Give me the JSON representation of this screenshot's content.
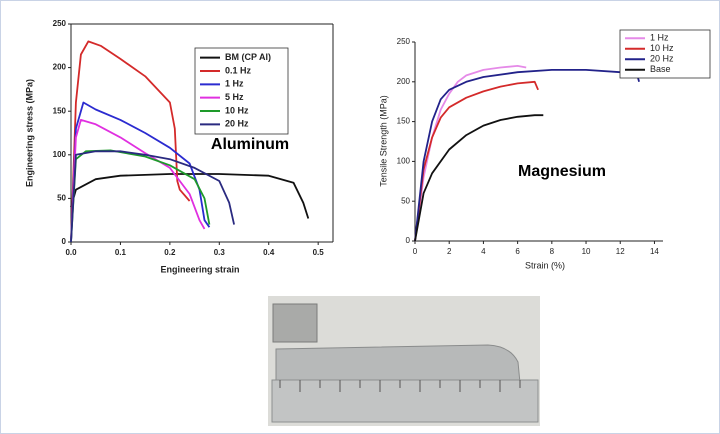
{
  "chart_data": [
    {
      "type": "line",
      "annotation": "Aluminum",
      "x_label": "Engineering strain",
      "y_label": "Engineering stress (MPa)",
      "xlim": [
        0,
        0.53
      ],
      "ylim": [
        0,
        250
      ],
      "xticks": [
        {
          "value": 0,
          "label": "0.0"
        },
        0.1,
        0.2,
        0.3,
        0.4,
        0.5
      ],
      "yticks": [
        0,
        50,
        100,
        150,
        200,
        250
      ],
      "legend": "upper right",
      "series": [
        {
          "name": "BM (CP Al)",
          "color": "#111111",
          "x": [
            0,
            0.01,
            0.05,
            0.1,
            0.2,
            0.3,
            0.4,
            0.45,
            0.47,
            0.48
          ],
          "values": [
            40,
            60,
            72,
            76,
            78,
            78,
            76,
            68,
            45,
            27
          ]
        },
        {
          "name": "0.1 Hz",
          "color": "#d42a2a",
          "x": [
            0,
            0.01,
            0.02,
            0.035,
            0.06,
            0.1,
            0.15,
            0.2,
            0.21,
            0.215,
            0.22,
            0.24
          ],
          "values": [
            0,
            160,
            215,
            230,
            225,
            210,
            190,
            160,
            130,
            70,
            60,
            47
          ]
        },
        {
          "name": "1 Hz",
          "color": "#2b2bd0",
          "x": [
            0,
            0.01,
            0.025,
            0.05,
            0.1,
            0.15,
            0.2,
            0.24,
            0.26,
            0.27,
            0.28
          ],
          "values": [
            0,
            130,
            160,
            152,
            140,
            125,
            108,
            90,
            60,
            25,
            17
          ]
        },
        {
          "name": "5 Hz",
          "color": "#e030e0",
          "x": [
            0,
            0.01,
            0.02,
            0.05,
            0.1,
            0.15,
            0.2,
            0.24,
            0.26,
            0.27
          ],
          "values": [
            0,
            120,
            140,
            135,
            120,
            102,
            85,
            55,
            25,
            15
          ]
        },
        {
          "name": "10 Hz",
          "color": "#1e9a2a",
          "x": [
            0,
            0.01,
            0.03,
            0.08,
            0.15,
            0.2,
            0.25,
            0.27,
            0.28
          ],
          "values": [
            0,
            95,
            104,
            105,
            98,
            88,
            72,
            50,
            20
          ]
        },
        {
          "name": "20 Hz",
          "color": "#2a2a80",
          "x": [
            0,
            0.01,
            0.05,
            0.1,
            0.15,
            0.2,
            0.25,
            0.3,
            0.32,
            0.33
          ],
          "values": [
            0,
            100,
            104,
            104,
            100,
            95,
            85,
            70,
            45,
            20
          ]
        }
      ]
    },
    {
      "type": "line",
      "annotation": "Magnesium",
      "x_label": "Strain (%)",
      "y_label": "Tensile Strength (MPa)",
      "xlim": [
        0,
        14.5
      ],
      "ylim": [
        0,
        250
      ],
      "xticks": [
        0,
        2,
        4,
        6,
        8,
        10,
        12,
        14
      ],
      "yticks": [
        0,
        50,
        100,
        150,
        200,
        250
      ],
      "legend": "upper right",
      "series": [
        {
          "name": "1 Hz",
          "color": "#e58ae8",
          "x": [
            0,
            0.5,
            1,
            1.5,
            2,
            2.5,
            3,
            4,
            5,
            6,
            6.5
          ],
          "values": [
            0,
            80,
            130,
            165,
            185,
            200,
            208,
            215,
            218,
            220,
            218
          ]
        },
        {
          "name": "10 Hz",
          "color": "#d42a2a",
          "x": [
            0,
            0.5,
            1,
            1.5,
            2,
            3,
            4,
            5,
            6,
            7,
            7.2
          ],
          "values": [
            0,
            90,
            130,
            155,
            168,
            180,
            188,
            194,
            198,
            200,
            190
          ]
        },
        {
          "name": "20 Hz",
          "color": "#22228a",
          "x": [
            0,
            0.5,
            1,
            1.5,
            2,
            3,
            4,
            6,
            8,
            10,
            12,
            13,
            13.1
          ],
          "values": [
            0,
            100,
            150,
            178,
            190,
            200,
            206,
            212,
            215,
            215,
            212,
            208,
            200
          ]
        },
        {
          "name": "Base",
          "color": "#111111",
          "x": [
            0,
            0.5,
            1,
            2,
            3,
            4,
            5,
            6,
            7,
            7.5
          ],
          "values": [
            0,
            60,
            85,
            115,
            133,
            145,
            152,
            156,
            158,
            158
          ]
        }
      ]
    }
  ]
}
